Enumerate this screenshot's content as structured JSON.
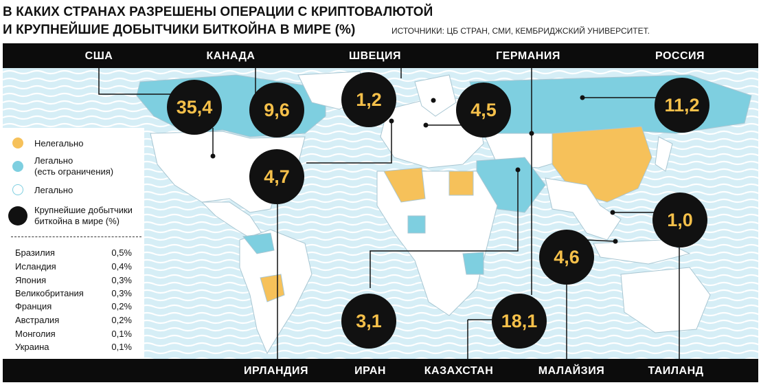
{
  "header": {
    "title_line1": "В КАКИХ СТРАНАХ РАЗРЕШЕНЫ ОПЕРАЦИИ С КРИПТОВАЛЮТОЙ",
    "title_line2": "И КРУПНЕЙШИЕ ДОБЫТЧИКИ БИТКОЙНА В МИРЕ (%)",
    "sources": "ИСТОЧНИКИ: ЦБ СТРАН, СМИ, КЕМБРИДЖСКИЙ УНИВЕРСИТЕТ."
  },
  "colors": {
    "illegal": "#f6c15a",
    "legal_restricted": "#7ecfe0",
    "legal": "#ffffff",
    "ocean": "#d6eef6",
    "bubble_text": "#f5c04a"
  },
  "legend": {
    "illegal": "Нелегально",
    "restricted_line1": "Легально",
    "restricted_line2": "(есть ограничения)",
    "legal": "Легально",
    "miners_line1": "Крупнейшие добытчики",
    "miners_line2": "биткойна в мире (%)"
  },
  "minor_miners": [
    {
      "country": "Бразилия",
      "value": "0,5%"
    },
    {
      "country": "Исландия",
      "value": "0,4%"
    },
    {
      "country": "Япония",
      "value": "0,3%"
    },
    {
      "country": "Великобритания",
      "value": "0,3%"
    },
    {
      "country": "Франция",
      "value": "0,2%"
    },
    {
      "country": "Австралия",
      "value": "0,2%"
    },
    {
      "country": "Монголия",
      "value": "0,1%"
    },
    {
      "country": "Украина",
      "value": "0,1%"
    }
  ],
  "miners": [
    {
      "country": "США",
      "value": "35,4"
    },
    {
      "country": "КАНАДА",
      "value": "9,6"
    },
    {
      "country": "ШВЕЦИЯ",
      "value": "1,2"
    },
    {
      "country": "ГЕРМАНИЯ",
      "value": "4,5"
    },
    {
      "country": "РОССИЯ",
      "value": "11,2"
    },
    {
      "country": "ИРЛАНДИЯ",
      "value": "4,7"
    },
    {
      "country": "ИРАН",
      "value": "3,1"
    },
    {
      "country": "КАЗАХСТАН",
      "value": "18,1"
    },
    {
      "country": "МАЛАЙЗИЯ",
      "value": "4,6"
    },
    {
      "country": "ТАИЛАНД",
      "value": "1,0"
    }
  ]
}
